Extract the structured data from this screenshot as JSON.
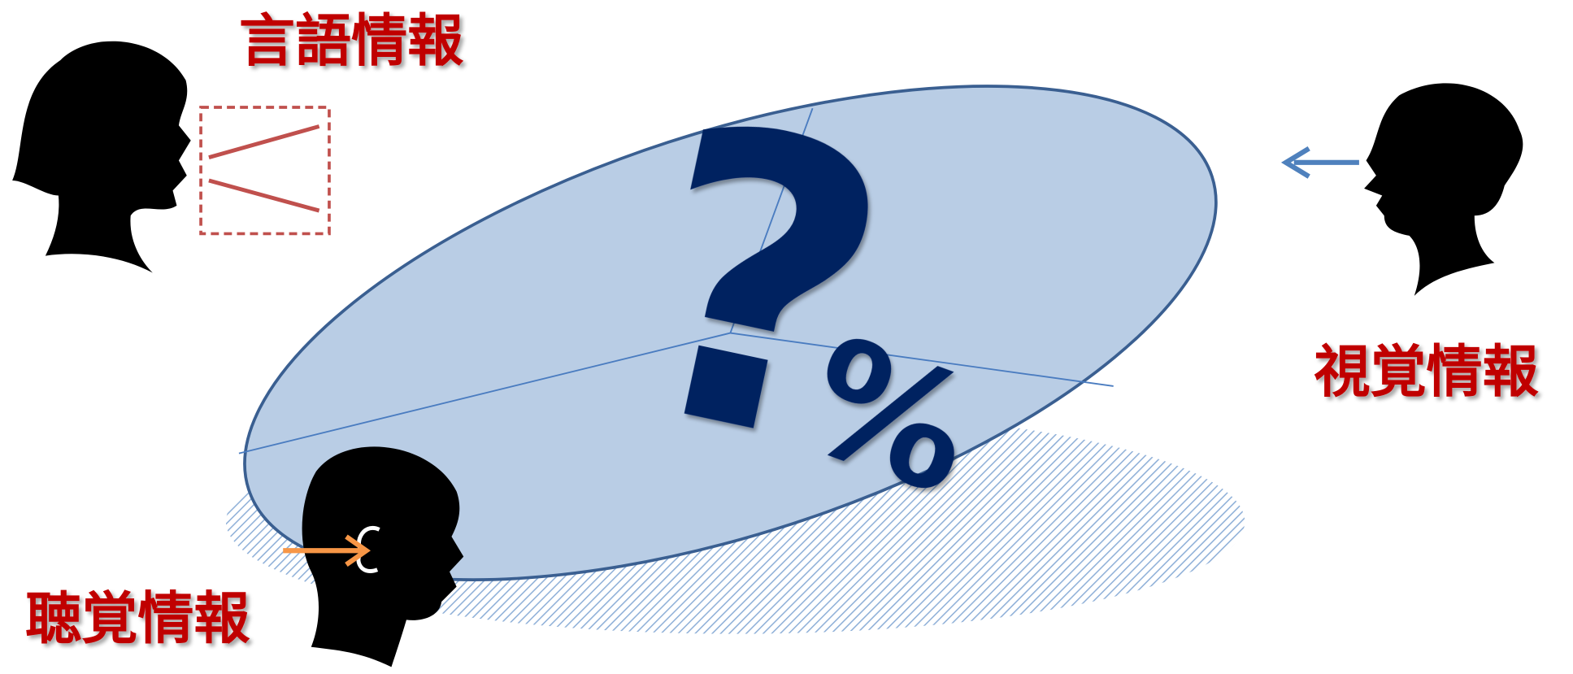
{
  "labels": {
    "verbal": "言語情報",
    "visual": "視覚情報",
    "auditory": "聴覚情報"
  },
  "center": {
    "question": "?",
    "percent": "%"
  }
}
